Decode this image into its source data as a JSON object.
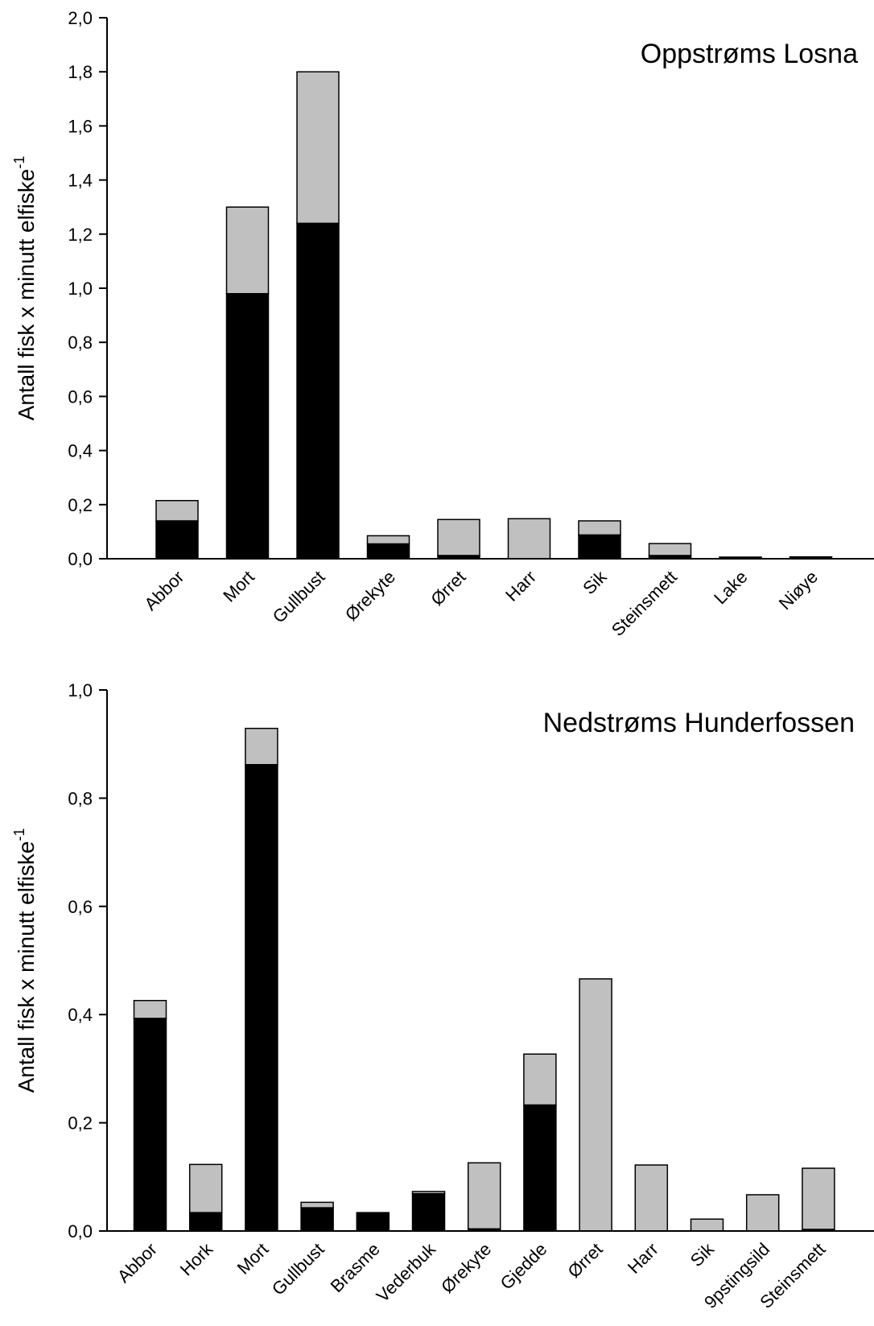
{
  "chart_data": [
    {
      "type": "bar",
      "stacked": true,
      "title": "Oppstrøms Losna",
      "ylabel": "Antall fisk x minutt elfiske",
      "ylabel_sup": "-1",
      "ylim": [
        0,
        2.0
      ],
      "yticks": [
        "0,0",
        "0,2",
        "0,4",
        "0,6",
        "0,8",
        "1,0",
        "1,2",
        "1,4",
        "1,6",
        "1,8",
        "2,0"
      ],
      "categories": [
        "Abbor",
        "Mort",
        "Gullbust",
        "Ørekyte",
        "Ørret",
        "Harr",
        "Sik",
        "Steinsmett",
        "Lake",
        "Niøye"
      ],
      "series": [
        {
          "color": "#000000",
          "values": [
            0.14,
            0.98,
            1.24,
            0.055,
            0.012,
            0.0,
            0.088,
            0.012,
            0.006,
            0.007
          ]
        },
        {
          "color": "#c0c0c0",
          "values": [
            0.075,
            0.32,
            0.56,
            0.03,
            0.133,
            0.148,
            0.052,
            0.044,
            0.0,
            0.0
          ]
        }
      ],
      "grid": false,
      "legend": "none"
    },
    {
      "type": "bar",
      "stacked": true,
      "title": "Nedstrøms Hunderfossen",
      "ylabel": "Antall fisk x minutt elfiske",
      "ylabel_sup": "-1",
      "ylim": [
        0,
        1.0
      ],
      "yticks": [
        "0,0",
        "0,2",
        "0,4",
        "0,6",
        "0,8",
        "1,0"
      ],
      "categories": [
        "Abbor",
        "Hork",
        "Mort",
        "Gullbust",
        "Brasme",
        "Vederbuk",
        "Ørekyte",
        "Gjedde",
        "Ørret",
        "Harr",
        "Sik",
        "9pstingsild",
        "Steinsmett"
      ],
      "series": [
        {
          "color": "#000000",
          "values": [
            0.393,
            0.034,
            0.862,
            0.043,
            0.034,
            0.069,
            0.004,
            0.233,
            0.0,
            0.0,
            0.0,
            0.0,
            0.003
          ]
        },
        {
          "color": "#c0c0c0",
          "values": [
            0.033,
            0.089,
            0.067,
            0.01,
            0.0,
            0.004,
            0.122,
            0.094,
            0.466,
            0.122,
            0.022,
            0.067,
            0.113
          ]
        }
      ],
      "grid": false,
      "legend": "none"
    }
  ]
}
